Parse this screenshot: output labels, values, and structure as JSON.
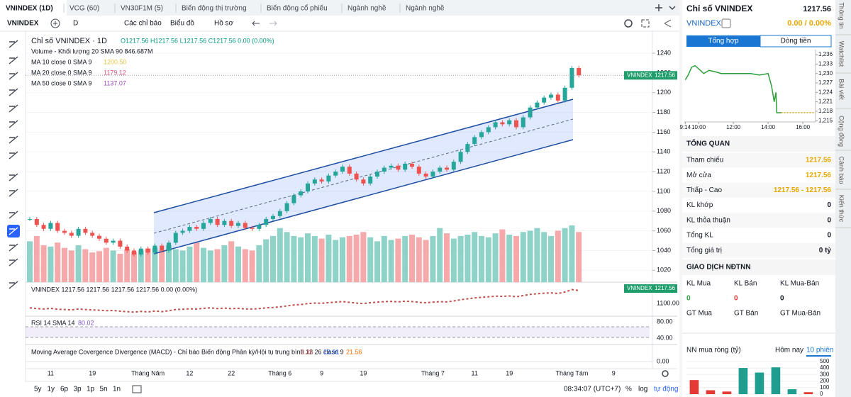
{
  "tabs": [
    "VNINDEX (1D)",
    "VCG (60)",
    "VN30F1M (5)",
    "Biến động thị trường",
    "Biến động cổ phiếu",
    "Ngành nghề",
    "Ngành nghề"
  ],
  "toolbar": {
    "symbol": "VNINDEX",
    "interval": "D",
    "indicators": "Các chỉ báo",
    "chart_type": "Biểu đồ",
    "profile": "Hồ sơ"
  },
  "chart": {
    "title": "Chỉ số VNINDEX · 1D",
    "ohlc": "O1217.56 H1217.56 L1217.56 C1217.56 0.00 (0.00%)",
    "volume_label": "Volume - Khối lượng 20 SMA 9",
    "volume_values": "0   846.687M",
    "ma": [
      {
        "label": "MA 10 close 0 SMA 9",
        "value": "1200.50",
        "color": "#e8c547"
      },
      {
        "label": "MA 20 close 0 SMA 9",
        "value": "1179.12",
        "color": "#d9577b"
      },
      {
        "label": "MA 50 close 0 SMA 9",
        "value": "1137.07",
        "color": "#a04bb8"
      }
    ],
    "price_tag": {
      "name": "VNINDEX",
      "value": "1217.56"
    },
    "ylim": [
      1008,
      1258
    ],
    "yticks": [
      1020,
      1040,
      1060,
      1080,
      1100,
      1120,
      1140,
      1160,
      1180,
      1200,
      1220,
      1240
    ],
    "up_color": "#26a69a",
    "down_color": "#ef5350",
    "categories": [
      null,
      null,
      null,
      "11",
      null,
      null,
      null,
      null,
      null,
      "19",
      null,
      null,
      null,
      null,
      null,
      null,
      null,
      "Tháng Năm",
      null,
      null,
      null,
      null,
      null,
      "12",
      null,
      null,
      null,
      null,
      null,
      "22",
      null,
      null,
      null,
      null,
      null,
      null,
      "Tháng 6",
      null,
      null,
      null,
      null,
      null,
      "9",
      null,
      null,
      null,
      null,
      null,
      "19",
      null,
      null,
      null,
      null,
      null,
      null,
      null,
      null,
      null,
      "Tháng 7",
      null,
      null,
      null,
      null,
      null,
      "11",
      null,
      null,
      null,
      null,
      "19",
      null,
      null,
      null,
      null,
      null,
      null,
      null,
      null,
      "Tháng Tám",
      null,
      null,
      null,
      null,
      null,
      "9"
    ],
    "closes": [
      1072,
      1066,
      1062,
      1068,
      1060,
      1058,
      1055,
      1062,
      1058,
      1055,
      1052,
      1048,
      1050,
      1044,
      1040,
      1036,
      1042,
      1038,
      1045,
      1040,
      1048,
      1058,
      1060,
      1064,
      1062,
      1068,
      1072,
      1066,
      1070,
      1065,
      1068,
      1063,
      1062,
      1066,
      1072,
      1075,
      1080,
      1088,
      1096,
      1100,
      1108,
      1112,
      1110,
      1116,
      1120,
      1125,
      1118,
      1112,
      1108,
      1115,
      1120,
      1124,
      1126,
      1122,
      1128,
      1125,
      1118,
      1115,
      1120,
      1124,
      1122,
      1130,
      1140,
      1148,
      1155,
      1160,
      1165,
      1170,
      1168,
      1172,
      1165,
      1175,
      1185,
      1190,
      1195,
      1198,
      1192,
      1205,
      1225,
      1217.56,
      null,
      null,
      null,
      null,
      null
    ],
    "volumes": [
      620,
      700,
      560,
      540,
      600,
      520,
      480,
      560,
      500,
      450,
      470,
      520,
      480,
      430,
      500,
      460,
      480,
      510,
      520,
      480,
      560,
      500,
      480,
      540,
      600,
      520,
      480,
      500,
      560,
      620,
      540,
      500,
      480,
      560,
      650,
      700,
      820,
      760,
      700,
      680,
      740,
      700,
      660,
      720,
      640,
      680,
      700,
      720,
      760,
      680,
      620,
      700,
      640,
      660,
      700,
      720,
      680,
      640,
      700,
      820,
      740,
      660,
      700,
      720,
      760,
      700,
      680,
      740,
      800,
      720,
      700,
      760,
      780,
      820,
      760,
      700,
      780,
      820,
      860,
      760,
      null,
      null,
      null,
      null,
      null
    ],
    "sub": {
      "label": "VNINDEX   1217.56  1217.56  1217.56  1217.56  0.00 (0.00%)",
      "tick": "1100.00",
      "tag_name": "VNINDEX",
      "tag_value": "1217.56"
    },
    "rsi": {
      "label": "RSI 14 SMA 14",
      "value": "80.02",
      "ticks": [
        "80.00",
        "40.00"
      ]
    },
    "macd": {
      "label": "Moving Average Covergence Divergence (MACD) - Chỉ báo Biến động Phân kỳ/Hội tụ trung bình 12 26 close 9",
      "values": [
        "2.36",
        "23.91",
        "21.56"
      ],
      "tick": "0.00"
    },
    "footer": {
      "ranges": [
        "5y",
        "1y",
        "6p",
        "3p",
        "1p",
        "5n",
        "1n"
      ],
      "time": "08:34:07 (UTC+7)",
      "percent": "%",
      "log": "log",
      "auto": "tự động"
    }
  },
  "panel": {
    "title": "Chỉ số VNINDEX",
    "price": "1217.56",
    "symbol": "VNINDEX",
    "change": "0.00 / 0.00%",
    "tabs": [
      "Tổng hợp",
      "Dòng tiền"
    ],
    "intraday": {
      "xlim": [
        9.18,
        16.73
      ],
      "ylim": [
        1214.6,
        1237.6
      ],
      "xticks": [
        {
          "value": 9.233,
          "label": "9:14"
        },
        {
          "value": 10,
          "label": "10:00"
        },
        {
          "value": 12,
          "label": "12:00"
        },
        {
          "value": 14,
          "label": "14:00"
        },
        {
          "value": 16,
          "label": "16:00"
        }
      ],
      "yticks": [
        {
          "value": 1236,
          "label": "1,236"
        },
        {
          "value": 1233,
          "label": "1,233"
        },
        {
          "value": 1230,
          "label": "1,230"
        },
        {
          "value": 1227,
          "label": "1,227"
        },
        {
          "value": 1224,
          "label": "1,224"
        },
        {
          "value": 1221,
          "label": "1,221"
        },
        {
          "value": 1218,
          "label": "1,218"
        },
        {
          "value": 1215,
          "label": "1,215"
        }
      ],
      "x": [
        9.233,
        9.4,
        9.6,
        9.8,
        10,
        10.3,
        10.6,
        11,
        11.3,
        11.5,
        13,
        13.5,
        14,
        14.2,
        14.35,
        14.45,
        14.5,
        14.75
      ],
      "y": [
        1228,
        1229.5,
        1232,
        1232.5,
        1231.5,
        1230,
        1231,
        1230.5,
        1230,
        1230,
        1230,
        1229.5,
        1230,
        1226,
        1221,
        1224,
        1217.5,
        1217.56
      ]
    },
    "summary": {
      "title": "TỔNG QUAN",
      "rows": [
        [
          "Tham chiếu",
          "1217.56"
        ],
        [
          "Mở cửa",
          "1217.56"
        ],
        [
          "Thấp - Cao",
          "1217.56 - 1217.56"
        ],
        [
          "KL khớp",
          "0"
        ],
        [
          "KL thỏa thuận",
          "0"
        ],
        [
          "Tổng KL",
          "0"
        ],
        [
          "Tổng giá trị",
          "0 tỷ"
        ]
      ]
    },
    "foreign": {
      "title": "GIAO DỊCH NĐTNN",
      "labels": [
        "KL Mua",
        "KL Bán",
        "KL Mua-Bán"
      ],
      "values": [
        "0",
        "0",
        "0"
      ],
      "value_labels": [
        "GT Mua",
        "GT Bán",
        "GT Mua-Bán"
      ]
    },
    "netbuy": {
      "title": "NN mua ròng (tỷ)",
      "tabs": [
        "Hôm nay",
        "10 phiên"
      ],
      "ylim": [
        0,
        520
      ],
      "yticks": [
        0,
        100,
        200,
        300,
        400,
        500
      ],
      "values": [
        215,
        60,
        40,
        400,
        330,
        410,
        75,
        30
      ],
      "colors": [
        "#e53935",
        "#e53935",
        "#e53935",
        "#1f9e8f",
        "#1f9e8f",
        "#1f9e8f",
        "#1f9e8f",
        "#e53935"
      ]
    },
    "side_tabs": [
      "Thông tin",
      "Watchlist",
      "Bài viết",
      "Cộng đồng",
      "Cảnh báo",
      "Kiến thức"
    ]
  }
}
